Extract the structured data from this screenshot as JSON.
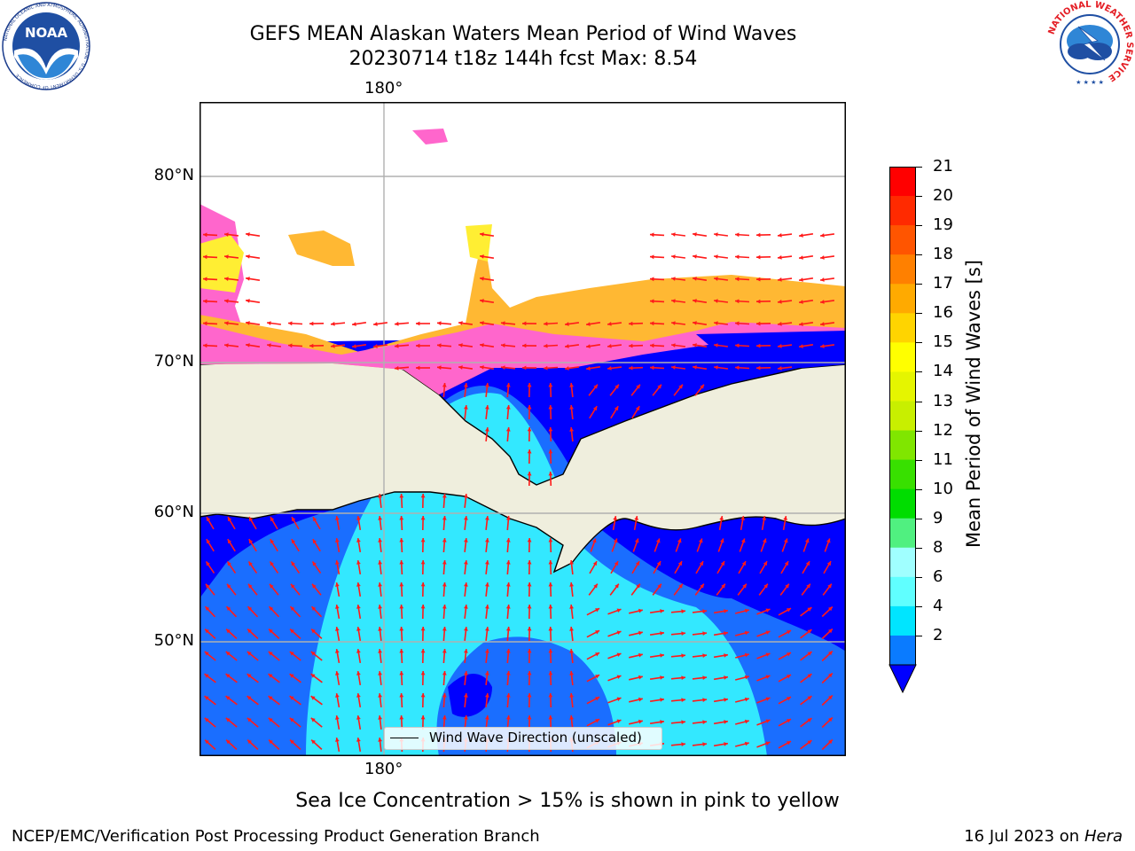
{
  "header": {
    "title_line1": "GEFS MEAN Alaskan Waters Mean Period of Wind Waves",
    "title_line2": "20230714 t18z 144h fcst   Max: 8.54"
  },
  "logos": {
    "left": "NOAA",
    "left_ring_text": "NATIONAL OCEANIC AND ATMOSPHERIC ADMINISTRATION · U.S. DEPARTMENT OF COMMERCE",
    "right_ring_text": "NATIONAL WEATHER SERVICE"
  },
  "map": {
    "lon_label_top": "180°",
    "lon_label_bottom": "180°",
    "lat_labels": [
      "80°N",
      "70°N",
      "60°N",
      "50°N"
    ],
    "legend_label": "Wind Wave Direction (unscaled)",
    "colors": {
      "land": "#efeedd",
      "ice_pink": "#ff66cc",
      "ice_yellow": "#ffee33",
      "ice_orange": "#ffb833",
      "water_dark": "#0000ff",
      "water_mid": "#1a6eff",
      "water_light": "#33e8ff",
      "arrow": "#ff1a1a"
    }
  },
  "colorbar": {
    "label": "Mean Period of Wind Waves [s]",
    "ticks": [
      "21",
      "20",
      "19",
      "18",
      "17",
      "16",
      "15",
      "14",
      "13",
      "12",
      "11",
      "10",
      "9",
      "8",
      "6",
      "4",
      "2"
    ],
    "colors": [
      "#ff0000",
      "#ff2a00",
      "#ff5500",
      "#ff8000",
      "#ffaa00",
      "#ffd400",
      "#ffff00",
      "#e5f500",
      "#c8ef00",
      "#80e600",
      "#38e000",
      "#00dd00",
      "#50f080",
      "#a0ffff",
      "#60ffff",
      "#00e5ff",
      "#0a7bff"
    ],
    "extend_color": "#0000ff"
  },
  "caption": "Sea Ice Concentration > 15% is shown in pink to yellow",
  "footer": {
    "left": "NCEP/EMC/Verification Post Processing Product Generation Branch",
    "right_prefix": "16 Jul 2023 on ",
    "right_host": "Hera"
  }
}
